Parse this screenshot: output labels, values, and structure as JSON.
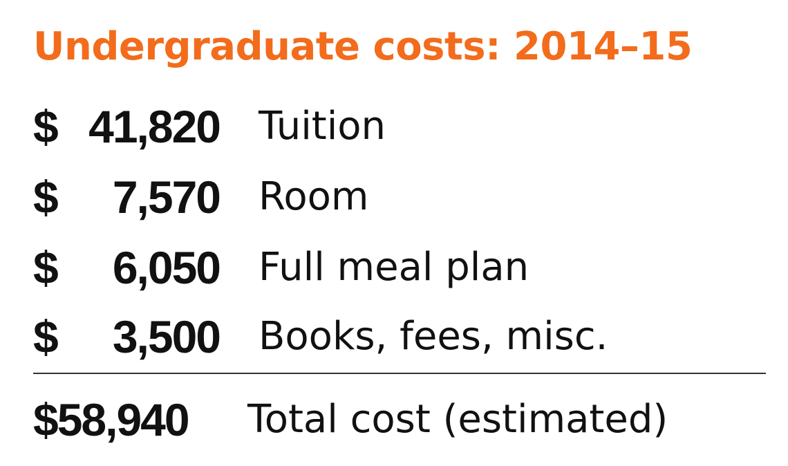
{
  "title": "Undergraduate costs: 2014–15",
  "colors": {
    "title": "#f26c1c",
    "text": "#111111",
    "rule": "#333333"
  },
  "items": [
    {
      "currency": "$",
      "amount": "41,820",
      "label": "Tuition"
    },
    {
      "currency": "$",
      "amount": "7,570",
      "label": "Room"
    },
    {
      "currency": "$",
      "amount": "6,050",
      "label": "Full meal plan"
    },
    {
      "currency": "$",
      "amount": "3,500",
      "label": "Books, fees, misc."
    }
  ],
  "total": {
    "amount": "$58,940",
    "label": "Total cost (estimated)"
  }
}
